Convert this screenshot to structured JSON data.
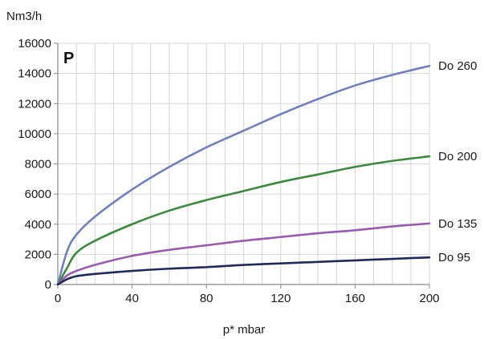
{
  "chart_data": {
    "type": "line",
    "ylabel": "Nm3/h",
    "xlabel": "p* mbar",
    "panel_label": "P",
    "xlim": [
      0,
      200
    ],
    "ylim": [
      0,
      16000
    ],
    "xticks": [
      0,
      40,
      80,
      120,
      160,
      200
    ],
    "yticks": [
      0,
      2000,
      4000,
      6000,
      8000,
      10000,
      12000,
      14000,
      16000
    ],
    "grid": true,
    "legend": "labels at line ends (right)",
    "series": [
      {
        "name": "Do 260",
        "color": "#6f7fc0",
        "points": [
          [
            0,
            0
          ],
          [
            5,
            2200
          ],
          [
            10,
            3300
          ],
          [
            20,
            4500
          ],
          [
            40,
            6300
          ],
          [
            60,
            7800
          ],
          [
            80,
            9100
          ],
          [
            100,
            10200
          ],
          [
            120,
            11300
          ],
          [
            140,
            12300
          ],
          [
            160,
            13200
          ],
          [
            180,
            13900
          ],
          [
            200,
            14500
          ]
        ]
      },
      {
        "name": "Do 200",
        "color": "#3b8a3e",
        "points": [
          [
            0,
            0
          ],
          [
            5,
            1100
          ],
          [
            10,
            2100
          ],
          [
            20,
            2900
          ],
          [
            40,
            4000
          ],
          [
            60,
            4900
          ],
          [
            80,
            5600
          ],
          [
            100,
            6200
          ],
          [
            120,
            6800
          ],
          [
            140,
            7300
          ],
          [
            160,
            7800
          ],
          [
            180,
            8200
          ],
          [
            200,
            8500
          ]
        ]
      },
      {
        "name": "Do 135",
        "color": "#9b5bb0",
        "points": [
          [
            0,
            0
          ],
          [
            5,
            600
          ],
          [
            10,
            900
          ],
          [
            20,
            1300
          ],
          [
            40,
            1900
          ],
          [
            60,
            2300
          ],
          [
            80,
            2600
          ],
          [
            100,
            2900
          ],
          [
            120,
            3150
          ],
          [
            140,
            3400
          ],
          [
            160,
            3600
          ],
          [
            180,
            3850
          ],
          [
            200,
            4050
          ]
        ]
      },
      {
        "name": "Do 95",
        "color": "#1f2a5c",
        "points": [
          [
            0,
            0
          ],
          [
            5,
            350
          ],
          [
            10,
            550
          ],
          [
            20,
            700
          ],
          [
            40,
            900
          ],
          [
            60,
            1050
          ],
          [
            80,
            1150
          ],
          [
            100,
            1300
          ],
          [
            120,
            1400
          ],
          [
            140,
            1500
          ],
          [
            160,
            1600
          ],
          [
            180,
            1700
          ],
          [
            200,
            1800
          ]
        ]
      }
    ]
  }
}
